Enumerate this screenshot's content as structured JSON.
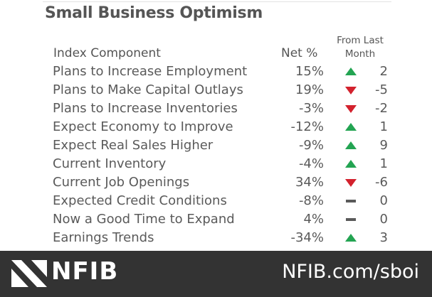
{
  "title": "Small Business Optimism",
  "columns": {
    "component": "Index Component",
    "net": "Net %",
    "change_line1": "From Last",
    "change_line2": "Month"
  },
  "colors": {
    "up": "#23a452",
    "down": "#d3212d",
    "flat": "#5a5a5a",
    "footer_bg": "#333333"
  },
  "rows": [
    {
      "name": "Plans to Increase Employment",
      "net": "15%",
      "direction": "up",
      "change": "2"
    },
    {
      "name": "Plans to Make Capital Outlays",
      "net": "19%",
      "direction": "down",
      "change": "-5"
    },
    {
      "name": "Plans to Increase Inventories",
      "net": "-3%",
      "direction": "down",
      "change": "-2"
    },
    {
      "name": "Expect Economy to Improve",
      "net": "-12%",
      "direction": "up",
      "change": "1"
    },
    {
      "name": "Expect Real Sales Higher",
      "net": "-9%",
      "direction": "up",
      "change": "9"
    },
    {
      "name": "Current Inventory",
      "net": "-4%",
      "direction": "up",
      "change": "1"
    },
    {
      "name": "Current Job Openings",
      "net": "34%",
      "direction": "down",
      "change": "-6"
    },
    {
      "name": "Expected Credit Conditions",
      "net": "-8%",
      "direction": "flat",
      "change": "0"
    },
    {
      "name": "Now a Good Time to Expand",
      "net": "4%",
      "direction": "flat",
      "change": "0"
    },
    {
      "name": "Earnings Trends",
      "net": "-34%",
      "direction": "up",
      "change": "3"
    }
  ],
  "footer": {
    "logo_text": "NFIB",
    "url": "NFIB.com/sboi"
  }
}
